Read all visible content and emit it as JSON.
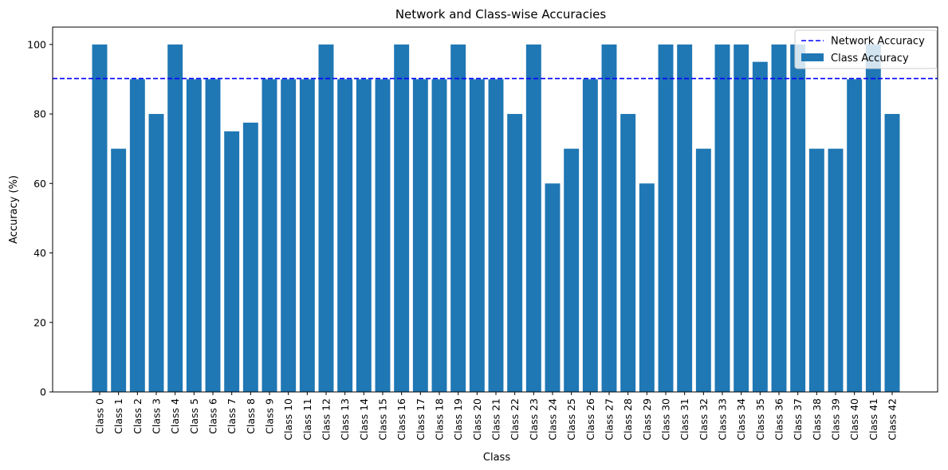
{
  "chart_data": {
    "type": "bar",
    "title": "Network and Class-wise Accuracies",
    "xlabel": "Class",
    "ylabel": "Accuracy (%)",
    "ylim": [
      0,
      105
    ],
    "yticks": [
      0,
      20,
      40,
      60,
      80,
      100
    ],
    "grid": false,
    "legend_position": "top-right",
    "categories": [
      "Class 0",
      "Class 1",
      "Class 2",
      "Class 3",
      "Class 4",
      "Class 5",
      "Class 6",
      "Class 7",
      "Class 8",
      "Class 9",
      "Class 10",
      "Class 11",
      "Class 12",
      "Class 13",
      "Class 14",
      "Class 15",
      "Class 16",
      "Class 17",
      "Class 18",
      "Class 19",
      "Class 20",
      "Class 21",
      "Class 22",
      "Class 23",
      "Class 24",
      "Class 25",
      "Class 26",
      "Class 27",
      "Class 28",
      "Class 29",
      "Class 30",
      "Class 31",
      "Class 32",
      "Class 33",
      "Class 34",
      "Class 35",
      "Class 36",
      "Class 37",
      "Class 38",
      "Class 39",
      "Class 40",
      "Class 41",
      "Class 42"
    ],
    "series": [
      {
        "name": "Class Accuracy",
        "color": "#1f77b4",
        "values": [
          100,
          70,
          90,
          80,
          100,
          90,
          90,
          75,
          77.5,
          90,
          90,
          90,
          100,
          90,
          90,
          90,
          100,
          90,
          90,
          100,
          90,
          90,
          80,
          100,
          60,
          70,
          90,
          100,
          80,
          60,
          100,
          100,
          70,
          100,
          100,
          95,
          100,
          100,
          70,
          70,
          90,
          100,
          80
        ]
      }
    ],
    "reference_lines": [
      {
        "name": "Network Accuracy",
        "value": 90.2,
        "color": "#0000ff",
        "style": "dashed"
      }
    ]
  }
}
